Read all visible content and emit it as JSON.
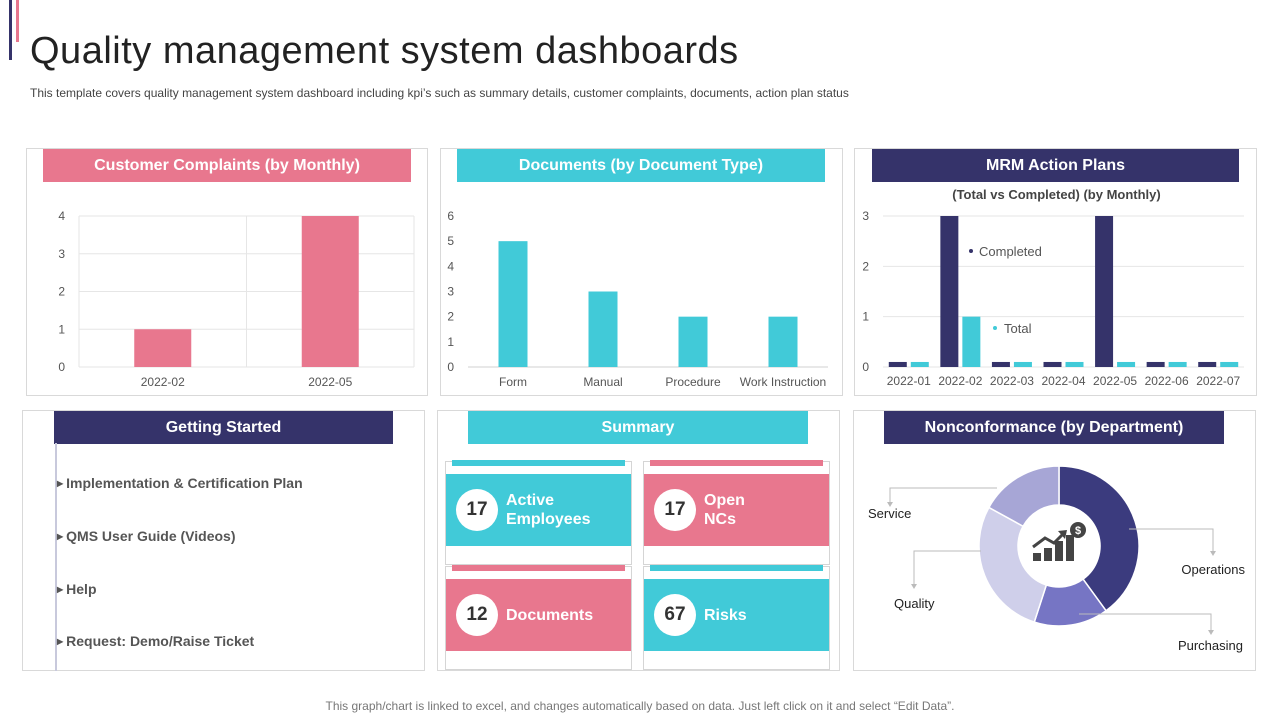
{
  "page": {
    "title": "Quality management system dashboards",
    "subtitle": "This template covers quality management system dashboard including kpi’s such as summary details, customer complaints, documents, action plan status",
    "footer": "This graph/chart is linked to excel,  and changes automatically based on data. Just left click on it and select “Edit Data”."
  },
  "colors": {
    "pink": "#E8778E",
    "cyan": "#41CAD8",
    "navy": "#35336A",
    "grid": "#e6e6e6",
    "donut_operations": "#3B3B7E",
    "donut_purchasing": "#7675C4",
    "donut_quality": "#CFCFEA",
    "donut_service": "#A7A6D6"
  },
  "panels": {
    "complaints": {
      "header": "Customer Complaints (by Monthly)"
    },
    "documents": {
      "header": "Documents (by Document Type)"
    },
    "mrm": {
      "header": "MRM Action Plans"
    },
    "getting_started": {
      "header": "Getting Started",
      "items": [
        "Implementation & Certification Plan",
        "QMS User Guide (Videos)",
        "Help",
        "Request:  Demo/Raise Ticket"
      ]
    },
    "summary": {
      "header": "Summary",
      "kpis": [
        {
          "value": "17",
          "label": "Active\nEmployees"
        },
        {
          "value": "17",
          "label": "Open\nNCs"
        },
        {
          "value": "12",
          "label": "Documents"
        },
        {
          "value": "67",
          "label": "Risks"
        }
      ]
    },
    "nonconformance": {
      "header": "Nonconformance (by Department)"
    }
  },
  "chart_data": [
    {
      "type": "bar",
      "title": "Customer Complaints (by Monthly)",
      "categories": [
        "2022-02",
        "2022-05"
      ],
      "values": [
        1,
        4
      ],
      "ylim": [
        0,
        4
      ],
      "yticks": [
        "0",
        "1",
        "2",
        "3",
        "4"
      ],
      "grid": true
    },
    {
      "type": "bar",
      "title": "Documents (by Document Type)",
      "categories": [
        "Form",
        "Manual",
        "Procedure",
        "Work Instruction"
      ],
      "values": [
        5,
        3,
        2,
        2
      ],
      "ylim": [
        0,
        6
      ],
      "yticks": [
        "0",
        "1",
        "2",
        "3",
        "4",
        "5",
        "6"
      ],
      "grid": false
    },
    {
      "type": "bar",
      "title": "MRM Action Plans",
      "subtitle": "(Total vs Completed) (by Monthly)",
      "categories": [
        "2022-01",
        "2022-02",
        "2022-03",
        "2022-04",
        "2022-05",
        "2022-06",
        "2022-07"
      ],
      "series": [
        {
          "name": "Completed",
          "values": [
            0.1,
            3,
            0.1,
            0.1,
            3,
            0.1,
            0.1
          ]
        },
        {
          "name": "Total",
          "values": [
            0.1,
            1,
            0.1,
            0.1,
            0.1,
            0.1,
            0.1
          ]
        }
      ],
      "ylim": [
        0,
        3
      ],
      "yticks": [
        "0",
        "1",
        "2",
        "3"
      ],
      "grid": true
    },
    {
      "type": "pie",
      "title": "Nonconformance (by Department)",
      "donut": true,
      "slices": [
        {
          "label": "Operations",
          "value": 40
        },
        {
          "label": "Purchasing",
          "value": 15
        },
        {
          "label": "Quality",
          "value": 28
        },
        {
          "label": "Service",
          "value": 17
        }
      ],
      "center_icon": "growth-chart-dollar-icon"
    }
  ]
}
